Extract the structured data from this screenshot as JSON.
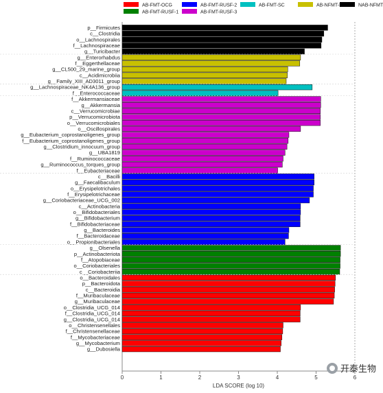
{
  "chart_data": {
    "type": "bar",
    "orientation": "horizontal",
    "xlabel": "LDA SCORE (log 10)",
    "xlim": [
      0,
      6
    ],
    "xticks": [
      0,
      1,
      2,
      3,
      4,
      5,
      6
    ],
    "grid": false,
    "legend_position": "top",
    "groups": [
      {
        "name": "AB-FMT-OCG",
        "color": "#ff0000"
      },
      {
        "name": "AB-FMT-RUSF-1",
        "color": "#008000"
      },
      {
        "name": "AB-FMT-RUSF-2",
        "color": "#0000ff"
      },
      {
        "name": "AB-FMT-RUSF-3",
        "color": "#cc00cc"
      },
      {
        "name": "AB-FMT-SC",
        "color": "#00c0c0"
      },
      {
        "name": "AB-NFMT-SC",
        "color": "#c8c000"
      },
      {
        "name": "NAB-NFMT-SC",
        "color": "#000000"
      }
    ],
    "bars": [
      {
        "label": "p__Firmicutes",
        "value": 5.3,
        "group": "NAB-NFMT-SC"
      },
      {
        "label": "c__Clostridia",
        "value": 5.2,
        "group": "NAB-NFMT-SC"
      },
      {
        "label": "o__Lachnospirales",
        "value": 5.15,
        "group": "NAB-NFMT-SC"
      },
      {
        "label": "f__Lachnospiraceae",
        "value": 5.13,
        "group": "NAB-NFMT-SC"
      },
      {
        "label": "g__Turicibacter",
        "value": 4.7,
        "group": "NAB-NFMT-SC"
      },
      {
        "label": "g__Enterorhabdus",
        "value": 4.6,
        "group": "AB-NFMT-SC"
      },
      {
        "label": "f__Eggerthellaceae",
        "value": 4.58,
        "group": "AB-NFMT-SC"
      },
      {
        "label": "g__CL500_29_marine_group",
        "value": 4.27,
        "group": "AB-NFMT-SC"
      },
      {
        "label": "c__Acidimicrobiia",
        "value": 4.26,
        "group": "AB-NFMT-SC"
      },
      {
        "label": "g__Family_XIII_AD3011_group",
        "value": 4.23,
        "group": "AB-NFMT-SC"
      },
      {
        "label": "g__Lachnospiraceae_NK4A136_group",
        "value": 4.9,
        "group": "AB-FMT-SC"
      },
      {
        "label": "f__Enterococcaceae",
        "value": 4.02,
        "group": "AB-FMT-SC"
      },
      {
        "label": "f__Akkermansiaceae",
        "value": 5.12,
        "group": "AB-FMT-RUSF-3"
      },
      {
        "label": "g__Akkermansia",
        "value": 5.12,
        "group": "AB-FMT-RUSF-3"
      },
      {
        "label": "c__Verrucomicrobiae",
        "value": 5.11,
        "group": "AB-FMT-RUSF-3"
      },
      {
        "label": "p__Verrucomicrobiota",
        "value": 5.11,
        "group": "AB-FMT-RUSF-3"
      },
      {
        "label": "o__Verrucomicrobiales",
        "value": 5.11,
        "group": "AB-FMT-RUSF-3"
      },
      {
        "label": "o__Oscillospirales",
        "value": 4.6,
        "group": "AB-FMT-RUSF-3"
      },
      {
        "label": "g__Eubacterium_coprostanoligenes_group",
        "value": 4.3,
        "group": "AB-FMT-RUSF-3"
      },
      {
        "label": "f__Eubacterium_coprostanoligenes_group",
        "value": 4.28,
        "group": "AB-FMT-RUSF-3"
      },
      {
        "label": "g__Clostridium_innocuum_group",
        "value": 4.25,
        "group": "AB-FMT-RUSF-3"
      },
      {
        "label": "g__UBA1819",
        "value": 4.2,
        "group": "AB-FMT-RUSF-3"
      },
      {
        "label": "f__Ruminococcaceae",
        "value": 4.15,
        "group": "AB-FMT-RUSF-3"
      },
      {
        "label": "g__Ruminococcus_torques_group",
        "value": 4.13,
        "group": "AB-FMT-RUSF-3"
      },
      {
        "label": "f__Eubacteriaceae",
        "value": 4.01,
        "group": "AB-FMT-RUSF-3"
      },
      {
        "label": "c__Bacilli",
        "value": 4.95,
        "group": "AB-FMT-RUSF-2"
      },
      {
        "label": "g__Faecalibaculum",
        "value": 4.95,
        "group": "AB-FMT-RUSF-2"
      },
      {
        "label": "o__Erysipelotrichales",
        "value": 4.93,
        "group": "AB-FMT-RUSF-2"
      },
      {
        "label": "f__Erysipelotrichaceae",
        "value": 4.93,
        "group": "AB-FMT-RUSF-2"
      },
      {
        "label": "g__Coriobacteriaceae_UCG_002",
        "value": 4.83,
        "group": "AB-FMT-RUSF-2"
      },
      {
        "label": "c__Actinobacteria",
        "value": 4.6,
        "group": "AB-FMT-RUSF-2"
      },
      {
        "label": "o__Bifidobacteriales",
        "value": 4.6,
        "group": "AB-FMT-RUSF-2"
      },
      {
        "label": "g__Bifidobacterium",
        "value": 4.59,
        "group": "AB-FMT-RUSF-2"
      },
      {
        "label": "f__Bifidobacteriaceae",
        "value": 4.59,
        "group": "AB-FMT-RUSF-2"
      },
      {
        "label": "g__Bacteroides",
        "value": 4.3,
        "group": "AB-FMT-RUSF-2"
      },
      {
        "label": "f__Bacteroidaceae",
        "value": 4.29,
        "group": "AB-FMT-RUSF-2"
      },
      {
        "label": "o__Propionibacteriales",
        "value": 4.2,
        "group": "AB-FMT-RUSF-2"
      },
      {
        "label": "g__Olsenella",
        "value": 5.63,
        "group": "AB-FMT-RUSF-1"
      },
      {
        "label": "p__Actinobacteriota",
        "value": 5.63,
        "group": "AB-FMT-RUSF-1"
      },
      {
        "label": "f__Atopobiaceae",
        "value": 5.62,
        "group": "AB-FMT-RUSF-1"
      },
      {
        "label": "o__Coriobacteriales",
        "value": 5.62,
        "group": "AB-FMT-RUSF-1"
      },
      {
        "label": "c__Coriobacteriia",
        "value": 5.61,
        "group": "AB-FMT-RUSF-1"
      },
      {
        "label": "o__Bacteroidales",
        "value": 5.5,
        "group": "AB-FMT-OCG"
      },
      {
        "label": "p__Bacteroidota",
        "value": 5.49,
        "group": "AB-FMT-OCG"
      },
      {
        "label": "c__Bacteroidia",
        "value": 5.48,
        "group": "AB-FMT-OCG"
      },
      {
        "label": "f__Muribaculaceae",
        "value": 5.47,
        "group": "AB-FMT-OCG"
      },
      {
        "label": "g__Muribaculaceae",
        "value": 5.45,
        "group": "AB-FMT-OCG"
      },
      {
        "label": "o__Clostridia_UCG_014",
        "value": 4.6,
        "group": "AB-FMT-OCG"
      },
      {
        "label": "f__Clostridia_UCG_014",
        "value": 4.59,
        "group": "AB-FMT-OCG"
      },
      {
        "label": "g__Clostridia_UCG_014",
        "value": 4.59,
        "group": "AB-FMT-OCG"
      },
      {
        "label": "o__Christensenellales",
        "value": 4.15,
        "group": "AB-FMT-OCG"
      },
      {
        "label": "f__Christensenellaceae",
        "value": 4.14,
        "group": "AB-FMT-OCG"
      },
      {
        "label": "f__Mycobacteriaceae",
        "value": 4.12,
        "group": "AB-FMT-OCG"
      },
      {
        "label": "g__Mycobacterium",
        "value": 4.1,
        "group": "AB-FMT-OCG"
      },
      {
        "label": "g__Dubosiella",
        "value": 4.08,
        "group": "AB-FMT-OCG"
      }
    ]
  },
  "watermark": {
    "text": "开泰生物",
    "icon": "wechat-icon"
  }
}
